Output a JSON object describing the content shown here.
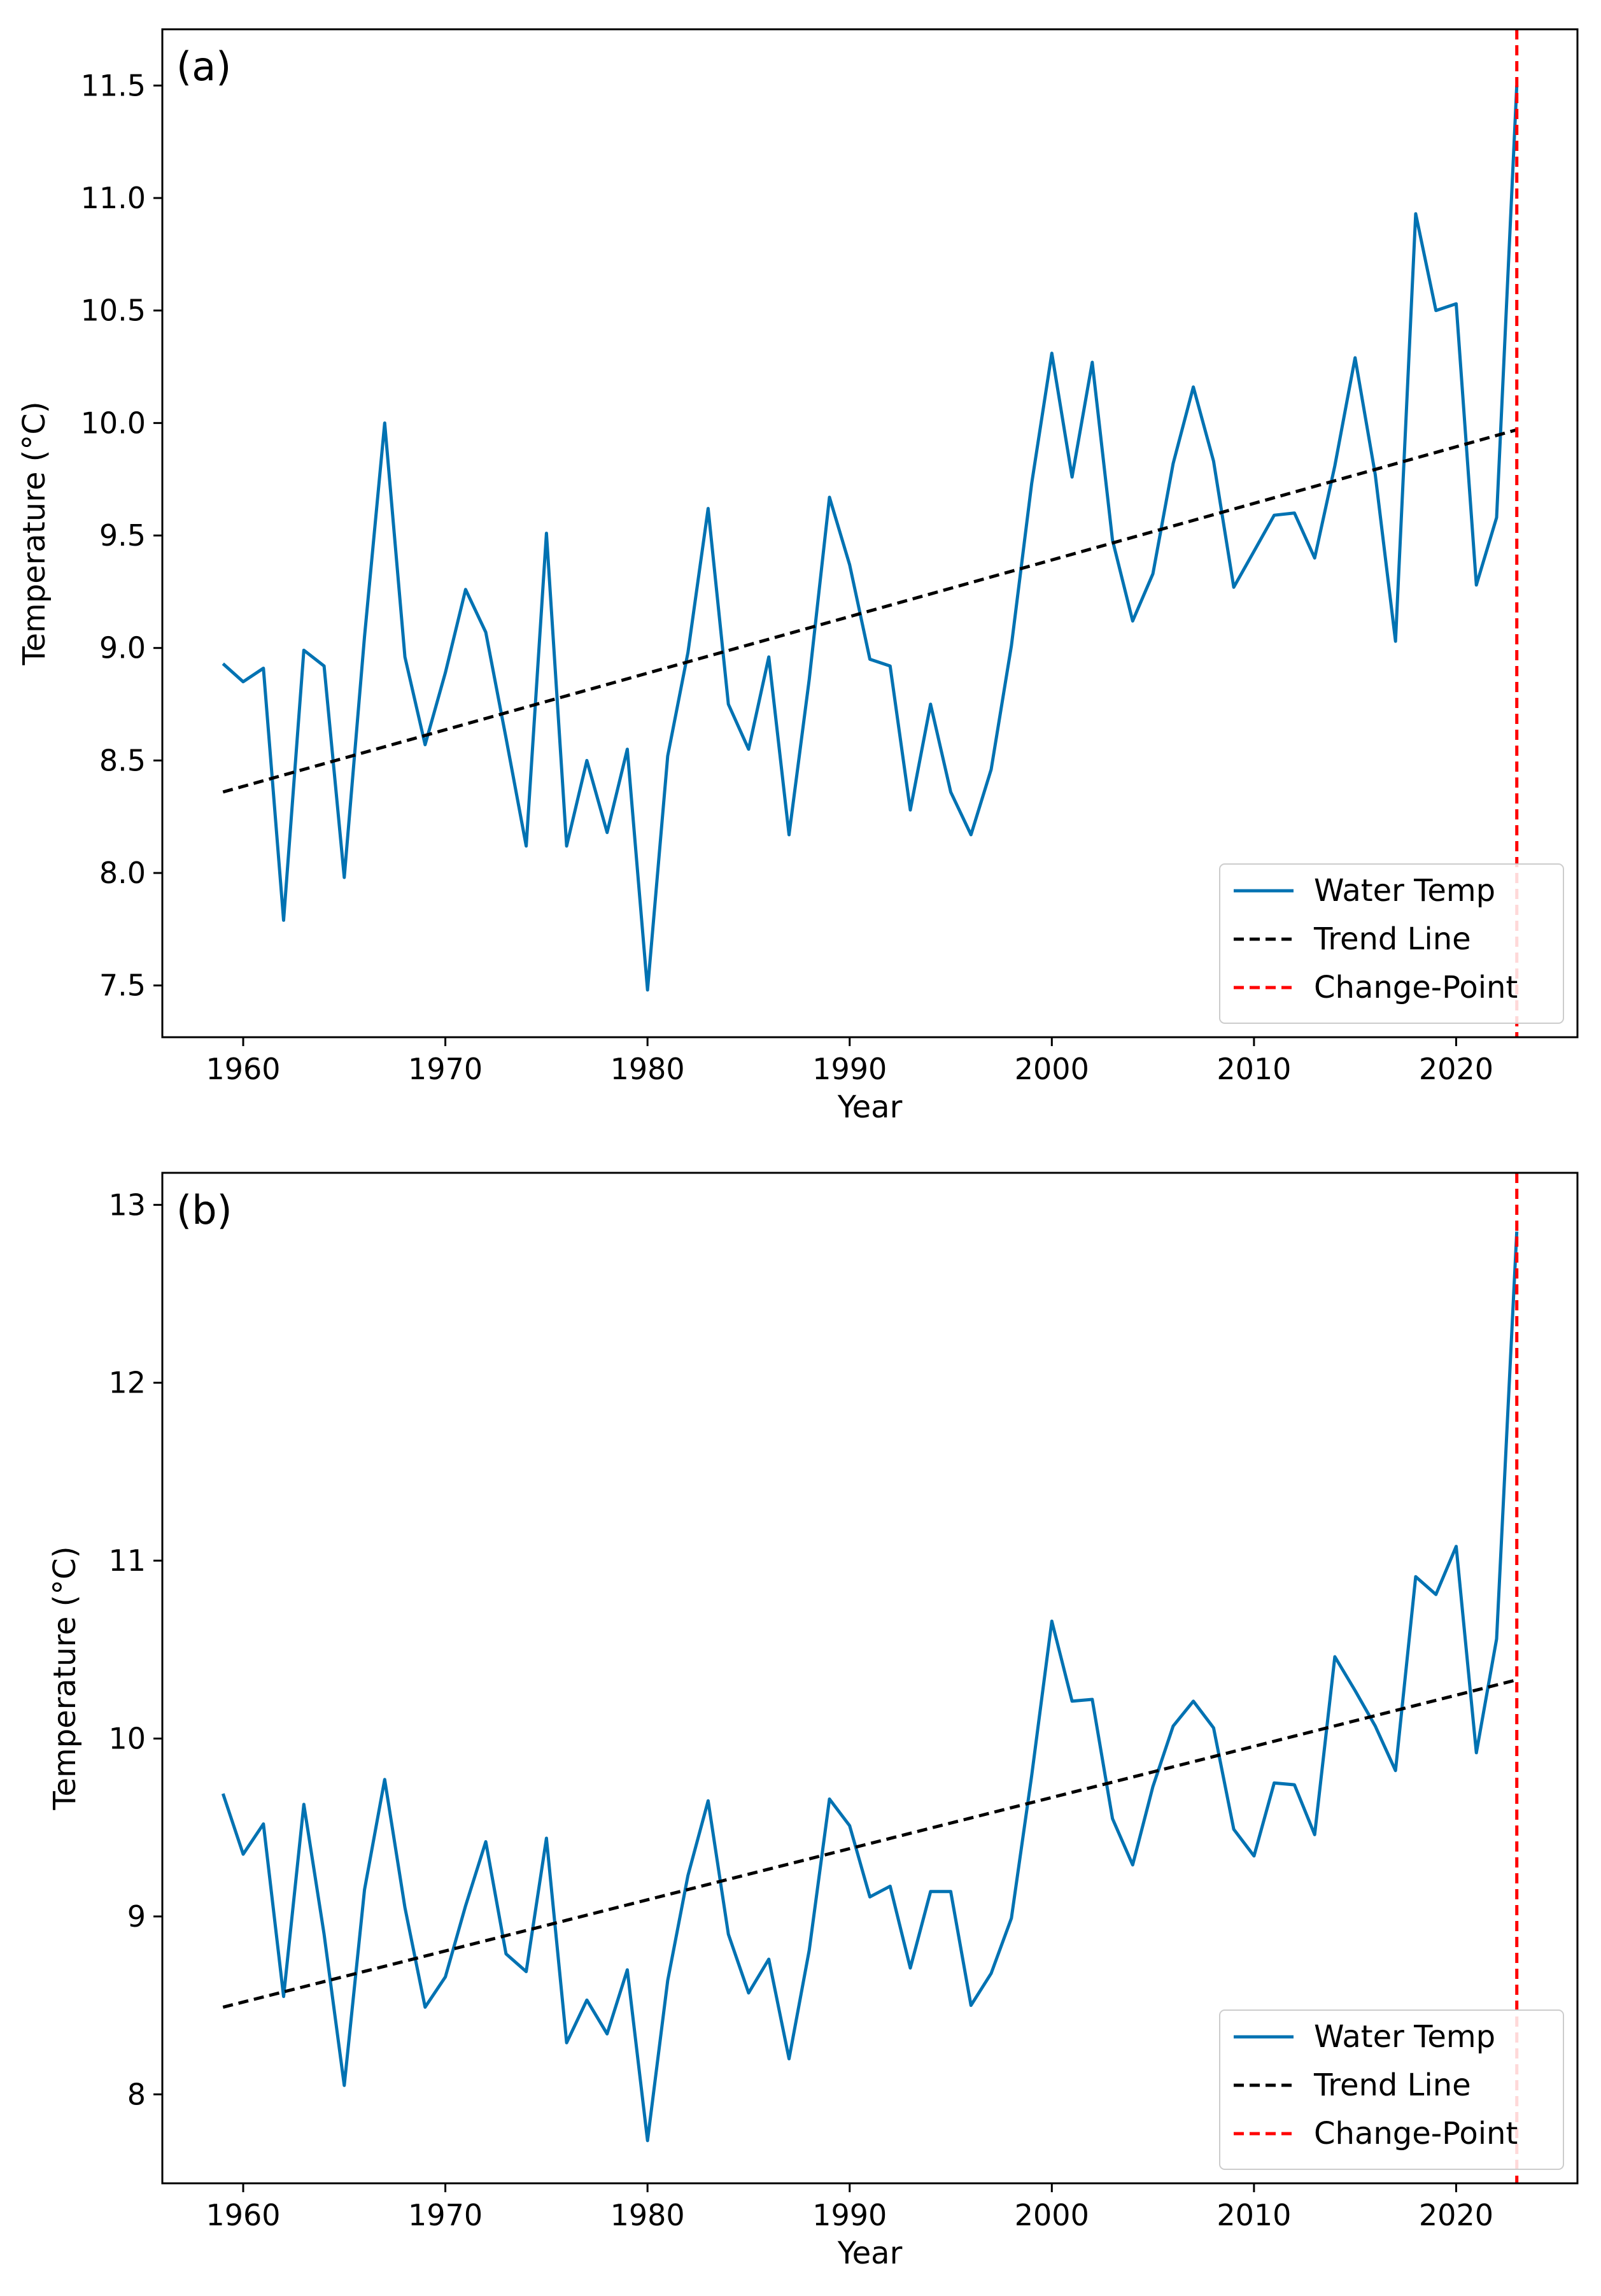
{
  "chart_data": [
    {
      "type": "line",
      "panel_label": "(a)",
      "xlabel": "Year",
      "ylabel": "Temperature (°C)",
      "xlim": [
        1956,
        2026
      ],
      "ylim": [
        7.27,
        11.75
      ],
      "xticks": [
        1960,
        1970,
        1980,
        1990,
        2000,
        2010,
        2020
      ],
      "xtick_labels": [
        "1960",
        "1970",
        "1980",
        "1990",
        "2000",
        "2010",
        "2020"
      ],
      "yticks": [
        7.5,
        8.0,
        8.5,
        9.0,
        9.5,
        10.0,
        10.5,
        11.0,
        11.5
      ],
      "ytick_labels": [
        "7.5",
        "8.0",
        "8.5",
        "9.0",
        "9.5",
        "10.0",
        "10.5",
        "11.0",
        "11.5"
      ],
      "grid": false,
      "legend_position": "lower-right",
      "series": [
        {
          "name": "Water Temp",
          "color": "#0072b2",
          "style": "solid",
          "x": [
            1959,
            1960,
            1961,
            1962,
            1963,
            1964,
            1965,
            1966,
            1967,
            1968,
            1969,
            1970,
            1971,
            1972,
            1973,
            1974,
            1975,
            1976,
            1977,
            1978,
            1979,
            1980,
            1981,
            1982,
            1983,
            1984,
            1985,
            1986,
            1987,
            1988,
            1989,
            1990,
            1991,
            1992,
            1993,
            1994,
            1995,
            1996,
            1997,
            1998,
            1999,
            2000,
            2001,
            2002,
            2003,
            2004,
            2005,
            2006,
            2007,
            2008,
            2009,
            2010,
            2011,
            2012,
            2013,
            2014,
            2015,
            2016,
            2017,
            2018,
            2019,
            2020,
            2021,
            2022,
            2023
          ],
          "y": [
            8.93,
            8.85,
            8.91,
            7.79,
            8.99,
            8.92,
            7.98,
            9.05,
            10.0,
            8.96,
            8.57,
            8.89,
            9.26,
            9.07,
            8.6,
            8.12,
            9.51,
            8.12,
            8.5,
            8.18,
            8.55,
            7.48,
            8.52,
            8.98,
            9.62,
            8.75,
            8.55,
            8.96,
            8.17,
            8.86,
            9.67,
            9.37,
            8.95,
            8.92,
            8.28,
            8.75,
            8.36,
            8.17,
            8.46,
            9.01,
            9.73,
            10.31,
            9.76,
            10.27,
            9.48,
            9.12,
            9.33,
            9.82,
            10.16,
            9.83,
            9.27,
            9.43,
            9.59,
            9.6,
            9.4,
            9.81,
            10.29,
            9.77,
            9.03,
            10.93,
            10.5,
            10.53,
            9.28,
            9.58,
            11.5
          ]
        },
        {
          "name": "Trend Line",
          "color": "#000000",
          "style": "dashed",
          "x": [
            1959,
            2023
          ],
          "y": [
            8.36,
            9.97
          ]
        }
      ],
      "vlines": [
        {
          "name": "Change-Point",
          "x": 2023,
          "color": "#ff0000",
          "style": "dashed"
        }
      ]
    },
    {
      "type": "line",
      "panel_label": "(b)",
      "xlabel": "Year",
      "ylabel": "Temperature (°C)",
      "xlim": [
        1956,
        2026
      ],
      "ylim": [
        7.5,
        13.18
      ],
      "xticks": [
        1960,
        1970,
        1980,
        1990,
        2000,
        2010,
        2020
      ],
      "xtick_labels": [
        "1960",
        "1970",
        "1980",
        "1990",
        "2000",
        "2010",
        "2020"
      ],
      "yticks": [
        8,
        9,
        10,
        11,
        12,
        13
      ],
      "ytick_labels": [
        "8",
        "9",
        "10",
        "11",
        "12",
        "13"
      ],
      "grid": false,
      "legend_position": "lower-right",
      "series": [
        {
          "name": "Water Temp",
          "color": "#0072b2",
          "style": "solid",
          "x": [
            1959,
            1960,
            1961,
            1962,
            1963,
            1964,
            1965,
            1966,
            1967,
            1968,
            1969,
            1970,
            1971,
            1972,
            1973,
            1974,
            1975,
            1976,
            1977,
            1978,
            1979,
            1980,
            1981,
            1982,
            1983,
            1984,
            1985,
            1986,
            1987,
            1988,
            1989,
            1990,
            1991,
            1992,
            1993,
            1994,
            1995,
            1996,
            1997,
            1998,
            1999,
            2000,
            2001,
            2002,
            2003,
            2004,
            2005,
            2006,
            2007,
            2008,
            2009,
            2010,
            2011,
            2012,
            2013,
            2014,
            2015,
            2016,
            2017,
            2018,
            2019,
            2020,
            2021,
            2022,
            2023
          ],
          "y": [
            9.69,
            9.35,
            9.52,
            8.55,
            9.63,
            8.9,
            8.05,
            9.15,
            9.77,
            9.05,
            8.49,
            8.66,
            9.06,
            9.42,
            8.79,
            8.69,
            9.44,
            8.29,
            8.53,
            8.34,
            8.7,
            7.74,
            8.64,
            9.23,
            9.65,
            8.9,
            8.57,
            8.76,
            8.2,
            8.81,
            9.66,
            9.51,
            9.11,
            9.17,
            8.71,
            9.14,
            9.14,
            8.5,
            8.68,
            8.99,
            9.79,
            10.66,
            10.21,
            10.22,
            9.55,
            9.29,
            9.73,
            10.07,
            10.21,
            10.06,
            9.49,
            9.34,
            9.75,
            9.74,
            9.46,
            10.46,
            10.27,
            10.07,
            9.82,
            10.91,
            10.81,
            11.08,
            9.92,
            10.56,
            12.85
          ]
        },
        {
          "name": "Trend Line",
          "color": "#000000",
          "style": "dashed",
          "x": [
            1959,
            2023
          ],
          "y": [
            8.49,
            10.33
          ]
        }
      ],
      "vlines": [
        {
          "name": "Change-Point",
          "x": 2023,
          "color": "#ff0000",
          "style": "dashed"
        }
      ]
    }
  ]
}
